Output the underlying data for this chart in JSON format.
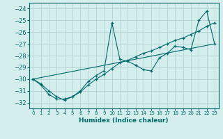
{
  "xlabel": "Humidex (Indice chaleur)",
  "bg_color": "#d4eeee",
  "grid_color": "#b8d8d8",
  "line_color": "#006868",
  "xlim": [
    -0.5,
    23.5
  ],
  "ylim": [
    -32.5,
    -23.5
  ],
  "yticks": [
    -32,
    -31,
    -30,
    -29,
    -28,
    -27,
    -26,
    -25,
    -24
  ],
  "xticks": [
    0,
    1,
    2,
    3,
    4,
    5,
    6,
    7,
    8,
    9,
    10,
    11,
    12,
    13,
    14,
    15,
    16,
    17,
    18,
    19,
    20,
    21,
    22,
    23
  ],
  "series1_x": [
    0,
    1,
    2,
    3,
    4,
    5,
    6,
    7,
    8,
    9,
    10,
    11,
    12,
    13,
    14,
    15,
    16,
    17,
    18,
    19,
    20,
    21,
    22,
    23
  ],
  "series1_y": [
    -30.0,
    -30.5,
    -31.3,
    -31.7,
    -31.7,
    -31.5,
    -31.0,
    -30.2,
    -29.7,
    -29.3,
    -25.2,
    -28.3,
    -28.5,
    -28.8,
    -29.2,
    -29.3,
    -28.2,
    -27.8,
    -27.2,
    -27.3,
    -27.5,
    -25.0,
    -24.2,
    -27.0
  ],
  "series2_x": [
    0,
    1,
    2,
    3,
    4,
    5,
    6,
    7,
    8,
    9,
    10,
    11,
    12,
    13,
    14,
    15,
    16,
    17,
    18,
    19,
    20,
    21,
    22,
    23
  ],
  "series2_y": [
    -30.0,
    -30.4,
    -31.0,
    -31.5,
    -31.8,
    -31.5,
    -31.1,
    -30.5,
    -30.0,
    -29.6,
    -29.1,
    -28.6,
    -28.4,
    -28.1,
    -27.8,
    -27.6,
    -27.3,
    -27.0,
    -26.7,
    -26.5,
    -26.2,
    -25.9,
    -25.5,
    -25.2
  ],
  "series3_x": [
    0,
    23
  ],
  "series3_y": [
    -30.0,
    -27.0
  ]
}
